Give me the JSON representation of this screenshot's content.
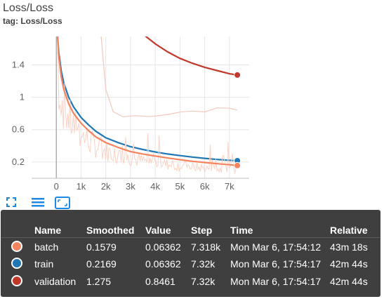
{
  "card": {
    "title": "Loss/Loss",
    "tag": "tag: Loss/Loss"
  },
  "colors": {
    "batch": "#f4845f",
    "batch_raw": "#fbd2c4",
    "train": "#1f77b4",
    "validation": "#c0392b",
    "validation_raw": "#f4c8bd",
    "axis": "#616161",
    "grid": "#e6e6e6"
  },
  "toolbar": {
    "icons": [
      "fit-domain-icon",
      "toggle-log-scale-icon",
      "expand-chart-icon"
    ]
  },
  "tooltip": {
    "headers": {
      "name": "Name",
      "smoothed": "Smoothed",
      "value": "Value",
      "step": "Step",
      "time": "Time",
      "relative": "Relative"
    },
    "rows": [
      {
        "name": "batch",
        "smoothed": "0.1579",
        "value": "0.06362",
        "step": "7.318k",
        "time": "Mon Mar 6, 17:54:12",
        "relative": "43m 18s",
        "color": "#f4845f"
      },
      {
        "name": "train",
        "smoothed": "0.2169",
        "value": "0.06362",
        "step": "7.32k",
        "time": "Mon Mar 6, 17:54:17",
        "relative": "42m 44s",
        "color": "#1f77b4"
      },
      {
        "name": "validation",
        "smoothed": "1.275",
        "value": "0.8461",
        "step": "7.32k",
        "time": "Mon Mar 6, 17:54:17",
        "relative": "42m 44s",
        "color": "#c0392b"
      }
    ]
  },
  "chart_data": {
    "type": "line",
    "title": "Loss/Loss",
    "xlabel": "",
    "ylabel": "",
    "xlim": [
      -1000,
      7800
    ],
    "ylim": [
      0,
      1.75
    ],
    "x_ticks": [
      0,
      1000,
      2000,
      3000,
      4000,
      5000,
      6000,
      7000
    ],
    "x_tick_labels": [
      "0",
      "1k",
      "2k",
      "3k",
      "4k",
      "5k",
      "6k",
      "7k"
    ],
    "y_ticks": [
      0.2,
      0.6,
      1,
      1.4
    ],
    "y_tick_labels": [
      "0.2",
      "0.6",
      "1",
      "1.4"
    ],
    "grid": true,
    "series": [
      {
        "name": "validation",
        "color": "#c0392b",
        "x": [
          3500,
          4000,
          4500,
          5000,
          5500,
          6000,
          6500,
          7000,
          7320
        ],
        "y": [
          1.78,
          1.66,
          1.56,
          1.48,
          1.42,
          1.37,
          1.33,
          1.29,
          1.275
        ]
      },
      {
        "name": "train",
        "color": "#1f77b4",
        "x": [
          50,
          100,
          200,
          300,
          500,
          700,
          1000,
          1300,
          1600,
          2000,
          2500,
          3000,
          3500,
          4000,
          4500,
          5000,
          5500,
          6000,
          6500,
          7000,
          7320
        ],
        "y": [
          1.75,
          1.55,
          1.32,
          1.18,
          1.0,
          0.88,
          0.75,
          0.66,
          0.58,
          0.5,
          0.44,
          0.39,
          0.355,
          0.325,
          0.3,
          0.28,
          0.262,
          0.246,
          0.232,
          0.222,
          0.2169
        ]
      },
      {
        "name": "batch",
        "color": "#f4845f",
        "x": [
          50,
          100,
          200,
          300,
          500,
          700,
          1000,
          1300,
          1600,
          2000,
          2500,
          3000,
          3500,
          4000,
          4500,
          5000,
          5500,
          6000,
          6500,
          7000,
          7318
        ],
        "y": [
          1.75,
          1.5,
          1.25,
          1.1,
          0.92,
          0.8,
          0.68,
          0.59,
          0.51,
          0.44,
          0.38,
          0.33,
          0.3,
          0.275,
          0.25,
          0.23,
          0.21,
          0.195,
          0.18,
          0.167,
          0.1579
        ]
      }
    ]
  }
}
